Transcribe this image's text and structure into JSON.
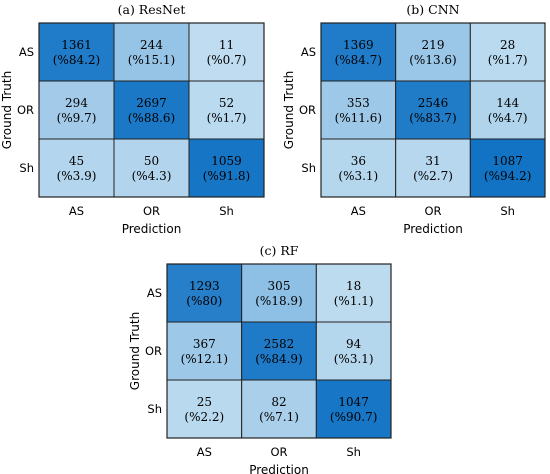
{
  "chart_data": [
    {
      "type": "heatmap",
      "title": "(a) ResNet",
      "xlabel": "Prediction",
      "ylabel": "Ground Truth",
      "x_categories": [
        "AS",
        "OR",
        "Sh"
      ],
      "y_categories": [
        "AS",
        "OR",
        "Sh"
      ],
      "counts": [
        [
          1361,
          244,
          11
        ],
        [
          294,
          2697,
          52
        ],
        [
          45,
          50,
          1059
        ]
      ],
      "percent_labels": [
        [
          "(%84.2)",
          "(%15.1)",
          "(%0.7)"
        ],
        [
          "(%9.7)",
          "(%88.6)",
          "(%1.7)"
        ],
        [
          "(%3.9)",
          "(%4.3)",
          "(%91.8)"
        ]
      ]
    },
    {
      "type": "heatmap",
      "title": "(b) CNN",
      "xlabel": "Prediction",
      "ylabel": "Ground Truth",
      "x_categories": [
        "AS",
        "OR",
        "Sh"
      ],
      "y_categories": [
        "AS",
        "OR",
        "Sh"
      ],
      "counts": [
        [
          1369,
          219,
          28
        ],
        [
          353,
          2546,
          144
        ],
        [
          36,
          31,
          1087
        ]
      ],
      "percent_labels": [
        [
          "(%84.7)",
          "(%13.6)",
          "(%1.7)"
        ],
        [
          "(%11.6)",
          "(%83.7)",
          "(%4.7)"
        ],
        [
          "(%3.1)",
          "(%2.7)",
          "(%94.2)"
        ]
      ]
    },
    {
      "type": "heatmap",
      "title": "(c) RF",
      "xlabel": "Prediction",
      "ylabel": "Ground Truth",
      "x_categories": [
        "AS",
        "OR",
        "Sh"
      ],
      "y_categories": [
        "AS",
        "OR",
        "Sh"
      ],
      "counts": [
        [
          1293,
          305,
          18
        ],
        [
          367,
          2582,
          94
        ],
        [
          25,
          82,
          1047
        ]
      ],
      "percent_labels": [
        [
          "(%80)",
          "(%18.9)",
          "(%1.1)"
        ],
        [
          "(%12.1)",
          "(%84.9)",
          "(%3.1)"
        ],
        [
          "(%2.2)",
          "(%7.1)",
          "(%90.7)"
        ]
      ]
    }
  ],
  "colors": {
    "low": "#c3dff1",
    "high": "#1172c4",
    "border": "#222222"
  }
}
